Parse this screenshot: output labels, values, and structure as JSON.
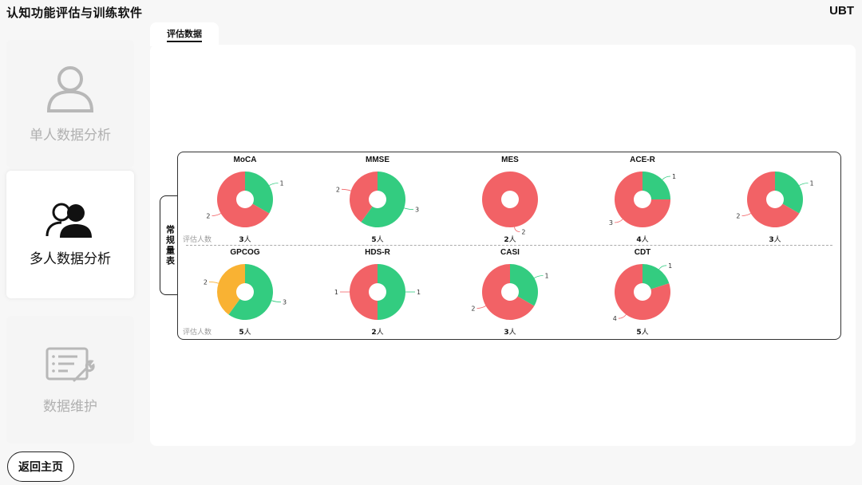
{
  "app": {
    "title": "认知功能评估与训练软件",
    "brand": "UBT"
  },
  "nav": {
    "single": {
      "label": "单人数据分析",
      "icon": "user-icon"
    },
    "multi": {
      "label": "多人数据分析",
      "icon": "users-icon"
    },
    "maintenance": {
      "label": "数据维护",
      "icon": "maintenance-icon"
    }
  },
  "home_button": "返回主页",
  "tab": {
    "label": "评估数据"
  },
  "section_label": "常规量表",
  "row_label": "评估人数",
  "colors": {
    "green": "#33cc80",
    "red": "#f26266",
    "orange": "#f9b233"
  },
  "chart_data": {
    "type": "pie",
    "charts": [
      {
        "name": "MoCA",
        "count": "3",
        "unit": "人",
        "slices": [
          {
            "value": 1,
            "color": "green"
          },
          {
            "value": 2,
            "color": "red"
          }
        ]
      },
      {
        "name": "MMSE",
        "count": "5",
        "unit": "人",
        "slices": [
          {
            "value": 3,
            "color": "green"
          },
          {
            "value": 2,
            "color": "red"
          }
        ]
      },
      {
        "name": "MES",
        "count": "2",
        "unit": "人",
        "slices": [
          {
            "value": 2,
            "color": "red"
          }
        ]
      },
      {
        "name": "ACE-R",
        "count": "4",
        "unit": "人",
        "slices": [
          {
            "value": 1,
            "color": "green"
          },
          {
            "value": 3,
            "color": "red"
          }
        ]
      },
      {
        "name": "",
        "count": "3",
        "unit": "人",
        "slices": [
          {
            "value": 1,
            "color": "green"
          },
          {
            "value": 2,
            "color": "red"
          }
        ]
      },
      {
        "name": "GPCOG",
        "count": "5",
        "unit": "人",
        "slices": [
          {
            "value": 3,
            "color": "green"
          },
          {
            "value": 2,
            "color": "orange"
          }
        ]
      },
      {
        "name": "HDS-R",
        "count": "2",
        "unit": "人",
        "slices": [
          {
            "value": 1,
            "color": "green"
          },
          {
            "value": 1,
            "color": "red"
          }
        ]
      },
      {
        "name": "CASI",
        "count": "3",
        "unit": "人",
        "slices": [
          {
            "value": 1,
            "color": "green"
          },
          {
            "value": 2,
            "color": "red"
          }
        ]
      },
      {
        "name": "CDT",
        "count": "5",
        "unit": "人",
        "slices": [
          {
            "value": 1,
            "color": "green"
          },
          {
            "value": 4,
            "color": "red"
          }
        ]
      }
    ]
  }
}
